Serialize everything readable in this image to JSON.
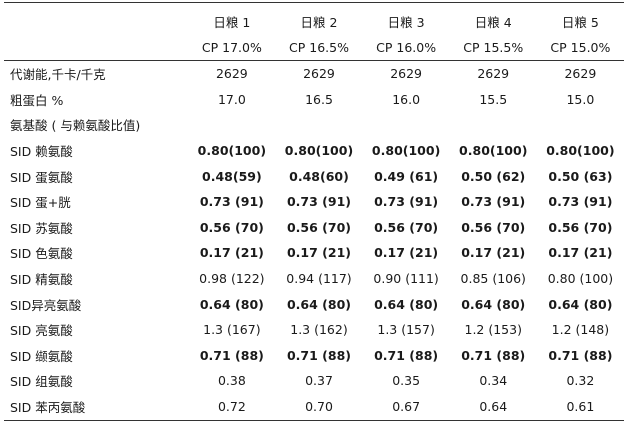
{
  "headers": {
    "diets": [
      "日粮 1",
      "日粮 2",
      "日粮 3",
      "日粮 4",
      "日粮 5"
    ],
    "cp": [
      "CP 17.0%",
      "CP 16.5%",
      "CP 16.0%",
      "CP 15.5%",
      "CP 15.0%"
    ]
  },
  "rows": [
    {
      "label": "代谢能,千卡/千克",
      "values": [
        "2629",
        "2629",
        "2629",
        "2629",
        "2629"
      ],
      "bold": false
    },
    {
      "label": "粗蛋白 %",
      "values": [
        "17.0",
        "16.5",
        "16.0",
        "15.5",
        "15.0"
      ],
      "bold": false
    },
    {
      "label": "氨基酸 ( 与赖氨酸比值)",
      "values": [
        "",
        "",
        "",
        "",
        ""
      ],
      "bold": false
    },
    {
      "label": "SID 赖氨酸",
      "values": [
        "0.80(100)",
        "0.80(100)",
        "0.80(100)",
        "0.80(100)",
        "0.80(100)"
      ],
      "bold": true
    },
    {
      "label": "SID 蛋氨酸",
      "values": [
        "0.48(59)",
        "0.48(60)",
        "0.49 (61)",
        "0.50 (62)",
        "0.50 (63)"
      ],
      "bold": true
    },
    {
      "label": "SID 蛋+胱",
      "values": [
        "0.73 (91)",
        "0.73 (91)",
        "0.73 (91)",
        "0.73 (91)",
        "0.73 (91)"
      ],
      "bold": true
    },
    {
      "label": "SID 苏氨酸",
      "values": [
        "0.56 (70)",
        "0.56 (70)",
        "0.56 (70)",
        "0.56 (70)",
        "0.56 (70)"
      ],
      "bold": true
    },
    {
      "label": "SID 色氨酸",
      "values": [
        "0.17 (21)",
        "0.17 (21)",
        "0.17 (21)",
        "0.17 (21)",
        "0.17 (21)"
      ],
      "bold": true
    },
    {
      "label": "SID 精氨酸",
      "values": [
        "0.98 (122)",
        "0.94 (117)",
        "0.90 (111)",
        "0.85 (106)",
        "0.80 (100)"
      ],
      "bold": false
    },
    {
      "label": "SID异亮氨酸",
      "values": [
        "0.64 (80)",
        "0.64 (80)",
        "0.64 (80)",
        "0.64 (80)",
        "0.64 (80)"
      ],
      "bold": true
    },
    {
      "label": "SID 亮氨酸",
      "values": [
        "1.3 (167)",
        "1.3 (162)",
        "1.3 (157)",
        "1.2 (153)",
        "1.2 (148)"
      ],
      "bold": false
    },
    {
      "label": "SID 缬氨酸",
      "values": [
        "0.71 (88)",
        "0.71 (88)",
        "0.71 (88)",
        "0.71 (88)",
        "0.71 (88)"
      ],
      "bold": true
    },
    {
      "label": "SID 组氨酸",
      "values": [
        "0.38",
        "0.37",
        "0.35",
        "0.34",
        "0.32"
      ],
      "bold": false
    },
    {
      "label": "SID  苯丙氨酸",
      "values": [
        "0.72",
        "0.70",
        "0.67",
        "0.64",
        "0.61"
      ],
      "bold": false
    }
  ]
}
